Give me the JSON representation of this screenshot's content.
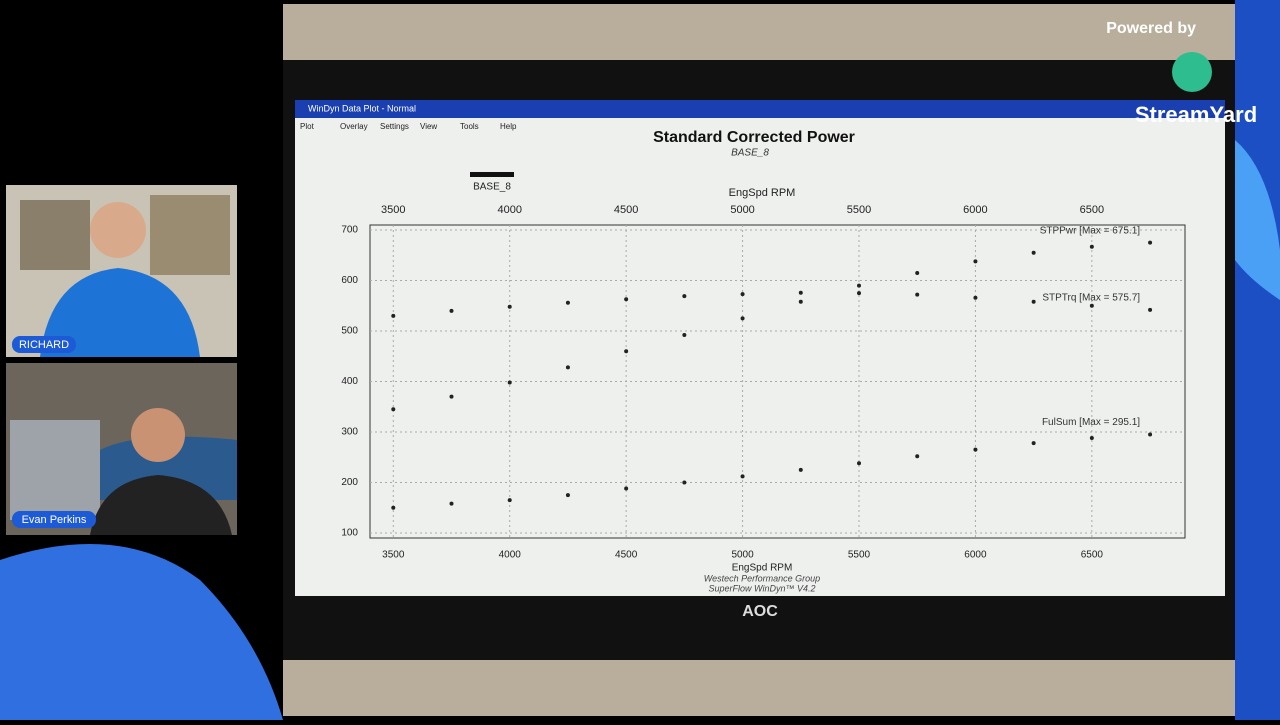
{
  "stream": {
    "powered_by": "Powered by",
    "brand": "StreamYard",
    "participants": [
      {
        "name": "RICHARD"
      },
      {
        "name": "Evan Perkins"
      }
    ]
  },
  "window": {
    "title": "WinDyn Data Plot - Normal",
    "menu": [
      "Plot",
      "Overlay",
      "Settings",
      "View",
      "Tools",
      "Help"
    ]
  },
  "monitor_brand": "AOC",
  "chart_data": {
    "type": "line",
    "title": "Standard Corrected Power",
    "subtitle": "BASE_8",
    "legend": {
      "label": "BASE_8",
      "color": "#111111"
    },
    "x_label_top": "EngSpd RPM",
    "x_label": "EngSpd RPM",
    "footer": [
      "Westech Performance Group",
      "SuperFlow WinDyn™ V4.2"
    ],
    "x": [
      3500,
      3750,
      4000,
      4250,
      4500,
      4750,
      5000,
      5250,
      5500,
      5750,
      6000,
      6250,
      6500,
      6750
    ],
    "xlim": [
      3400,
      6900
    ],
    "xticks": [
      3500,
      4000,
      4500,
      5000,
      5500,
      6000,
      6500
    ],
    "ylim": [
      90,
      710
    ],
    "yticks": [
      100,
      200,
      300,
      400,
      500,
      600,
      700
    ],
    "grid": true,
    "series": [
      {
        "label": "STPPwr [Max = 675.1]",
        "color": "#222222",
        "values": [
          345,
          370,
          398,
          428,
          460,
          492,
          525,
          558,
          590,
          615,
          638,
          655,
          667,
          675.1
        ]
      },
      {
        "label": "STPTrq [Max = 575.7]",
        "color": "#222222",
        "values": [
          530,
          540,
          548,
          556,
          563,
          569,
          573,
          575.7,
          575,
          572,
          566,
          558,
          550,
          542
        ]
      },
      {
        "label": "FulSum [Max = 295.1]",
        "color": "#222222",
        "values": [
          150,
          158,
          165,
          175,
          188,
          200,
          212,
          225,
          238,
          252,
          265,
          278,
          288,
          295.1
        ]
      }
    ]
  }
}
